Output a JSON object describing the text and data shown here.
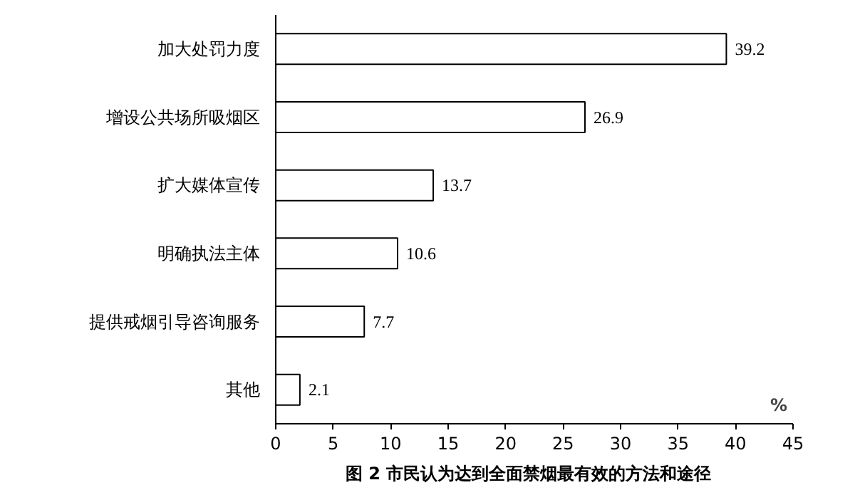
{
  "chart_data": {
    "type": "bar",
    "orientation": "horizontal",
    "title": "图 2   市民认为达到全面禁烟最有效的方法和途径",
    "xlabel": "%",
    "categories": [
      "加大处罚力度",
      "增设公共场所吸烟区",
      "扩大媒体宣传",
      "明确执法主体",
      "提供戒烟引导咨询服务",
      "其他"
    ],
    "values": [
      39.2,
      26.9,
      13.7,
      10.6,
      7.7,
      2.1
    ],
    "color": "#ffffff",
    "xlim": [
      0,
      45
    ],
    "xticks": [
      0,
      5,
      10,
      15,
      20,
      25,
      30,
      35,
      40,
      45
    ],
    "data_labels": true,
    "grid": false
  }
}
